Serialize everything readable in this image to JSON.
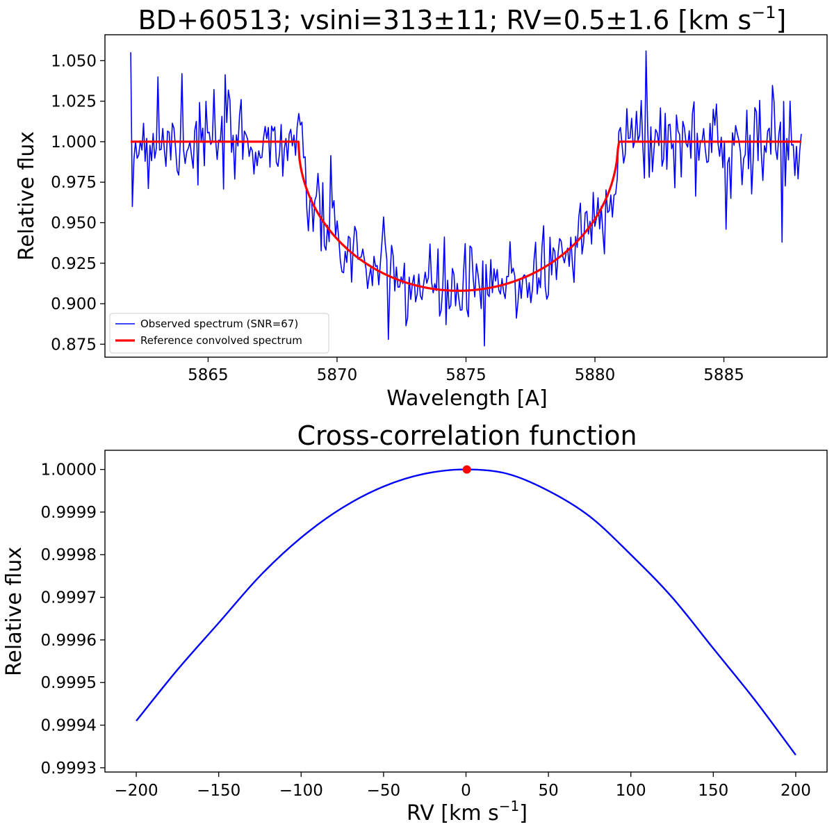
{
  "colors": {
    "observed": "#0000ff",
    "reference": "#ff0000",
    "ccf": "#0000ff",
    "peak": "#ff0000"
  },
  "chart_data": [
    {
      "type": "line",
      "title": "BD+60513; vsini=313±11; RV=0.5±1.6 [km s⁻¹]",
      "title_main": "BD+60513; vsini=313±11; RV=0.5±1.6 [km s",
      "title_sup": "−1",
      "title_close": "]",
      "xlabel": "Wavelength [A]",
      "ylabel": "Relative flux",
      "xlim": [
        5861.0,
        5889.0
      ],
      "ylim": [
        0.867,
        1.066
      ],
      "xticks": [
        5865,
        5870,
        5875,
        5880,
        5885
      ],
      "xtick_labels": [
        "5865",
        "5870",
        "5875",
        "5880",
        "5885"
      ],
      "yticks": [
        0.875,
        0.9,
        0.925,
        0.95,
        0.975,
        1.0,
        1.025,
        1.05
      ],
      "ytick_labels": [
        "0.875",
        "0.900",
        "0.925",
        "0.950",
        "0.975",
        "1.000",
        "1.025",
        "1.050"
      ],
      "legend": {
        "placement": "lower-left",
        "entries": [
          "Observed spectrum (SNR=67)",
          "Reference convolved spectrum"
        ]
      },
      "series": [
        {
          "name": "Observed spectrum (SNR=67)",
          "x_range": [
            5862.0,
            5888.0
          ],
          "points": 420,
          "snr": 67,
          "noise_seed": 7,
          "notable_points": [
            {
              "x": 5862.05,
              "y": 0.96
            },
            {
              "x": 5863.05,
              "y": 1.04
            },
            {
              "x": 5864.0,
              "y": 1.042
            },
            {
              "x": 5872.0,
              "y": 0.878
            },
            {
              "x": 5875.7,
              "y": 0.874
            },
            {
              "x": 5881.95,
              "y": 1.056
            },
            {
              "x": 5885.1,
              "y": 0.946
            },
            {
              "x": 5887.25,
              "y": 0.938
            }
          ]
        },
        {
          "name": "Reference convolved spectrum",
          "x_range": [
            5862.0,
            5888.0
          ],
          "continuum": 1.0,
          "line_center": 5874.7,
          "half_width": 6.2,
          "depth": 0.092
        }
      ]
    },
    {
      "type": "line",
      "title": "Cross-correlation function",
      "xlabel_main": "RV [km s",
      "xlabel_sup": "−1",
      "xlabel_close": "]",
      "ylabel": "Relative flux",
      "xlim": [
        -219.0,
        219.0
      ],
      "ylim": [
        0.99929,
        1.000045
      ],
      "xticks": [
        -200,
        -150,
        -100,
        -50,
        0,
        50,
        100,
        150,
        200
      ],
      "xtick_labels": [
        "−200",
        "−150",
        "−100",
        "−50",
        "0",
        "50",
        "100",
        "150",
        "200"
      ],
      "yticks": [
        0.9993,
        0.9994,
        0.9995,
        0.9996,
        0.9997,
        0.9998,
        0.9999,
        1.0
      ],
      "ytick_labels": [
        "0.9993",
        "0.9994",
        "0.9995",
        "0.9996",
        "0.9997",
        "0.9998",
        "0.9999",
        "1.0000"
      ],
      "series": [
        {
          "name": "CCF",
          "x": [
            -200,
            -175,
            -150,
            -125,
            -100,
            -75,
            -50,
            -25,
            0,
            25,
            50,
            75,
            100,
            125,
            150,
            175,
            200
          ],
          "values": [
            0.99941,
            0.99953,
            0.99964,
            0.99975,
            0.99984,
            0.99991,
            0.99996,
            0.99999,
            1.0,
            0.99999,
            0.99995,
            0.99989,
            0.9998,
            0.9997,
            0.99958,
            0.99946,
            0.99933
          ]
        }
      ],
      "peak": {
        "x": 0.5,
        "y": 1.0
      }
    }
  ]
}
